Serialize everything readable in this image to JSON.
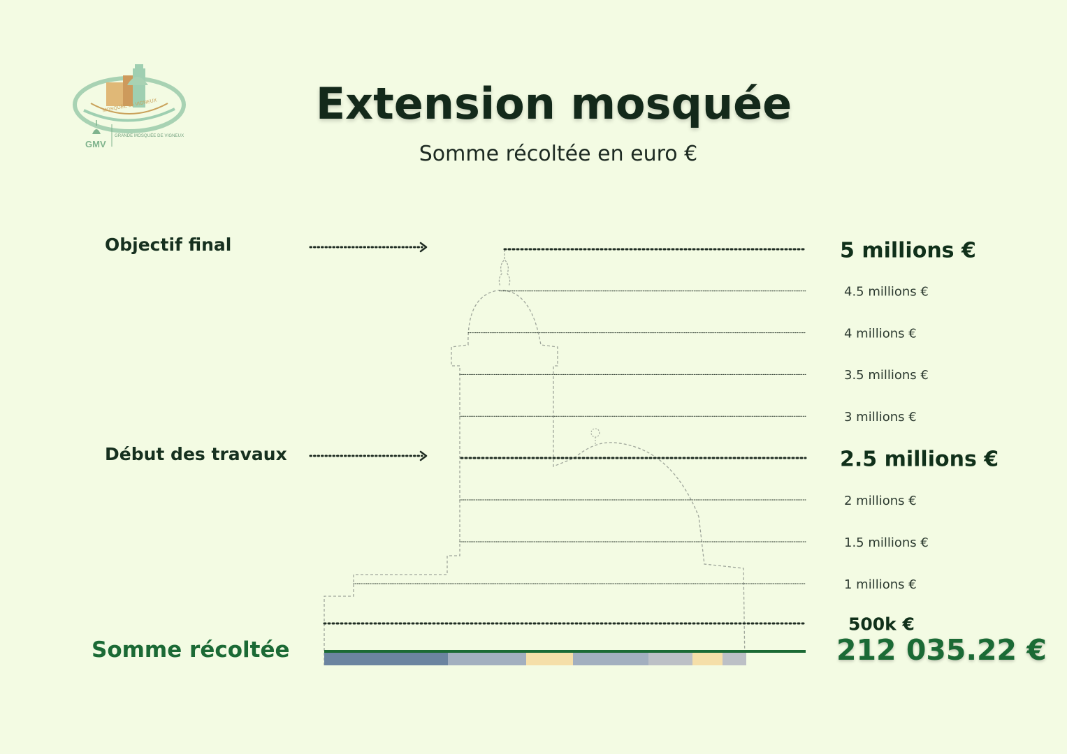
{
  "header": {
    "title": "Extension mosquée",
    "subtitle": "Somme récoltée en euro €"
  },
  "logo": {
    "short_name": "GMV",
    "full_name": "GRANDE MOSQUÉE DE VIGNEUX",
    "banner": "MOSQUÉE de VIGNEUX"
  },
  "annotations": {
    "final_goal_label": "Objectif final",
    "works_start_label": "Début des travaux",
    "collected_label": "Somme récoltée",
    "collected_value_text": "212 035.22 €"
  },
  "colors": {
    "background": "#f3fbe3",
    "text_dark": "#16301f",
    "collected_green": "#1b6a35",
    "silhouette_outline": "#9ea59a",
    "bar_segments": [
      "#6b84a0",
      "#a2afbf",
      "#f5dfa9",
      "#a2afbf",
      "#bcc0c6",
      "#f5dfa9",
      "#bcc0c6"
    ]
  },
  "chart_data": {
    "type": "bar",
    "title": "Extension mosquée",
    "subtitle": "Somme récoltée en euro €",
    "ylim": [
      0,
      5000000
    ],
    "ticks": [
      {
        "value": 5000000,
        "label": "5 millions €",
        "emphasis": "major"
      },
      {
        "value": 4500000,
        "label": "4.5 millions €",
        "emphasis": "minor"
      },
      {
        "value": 4000000,
        "label": "4 millions €",
        "emphasis": "minor"
      },
      {
        "value": 3500000,
        "label": "3.5 millions €",
        "emphasis": "minor"
      },
      {
        "value": 3000000,
        "label": "3 millions €",
        "emphasis": "minor"
      },
      {
        "value": 2500000,
        "label": "2.5 millions €",
        "emphasis": "major"
      },
      {
        "value": 2000000,
        "label": "2 millions €",
        "emphasis": "minor"
      },
      {
        "value": 1500000,
        "label": "1.5 millions €",
        "emphasis": "minor"
      },
      {
        "value": 1000000,
        "label": "1 millions €",
        "emphasis": "minor"
      },
      {
        "value": 500000,
        "label": "500k €",
        "emphasis": "medium"
      }
    ],
    "milestones": [
      {
        "name": "Objectif final",
        "value": 5000000
      },
      {
        "name": "Début des travaux",
        "value": 2500000
      }
    ],
    "collected": 212035.22,
    "collected_label": "212 035.22 €",
    "progress_fraction_of_silhouette": 1.0
  }
}
